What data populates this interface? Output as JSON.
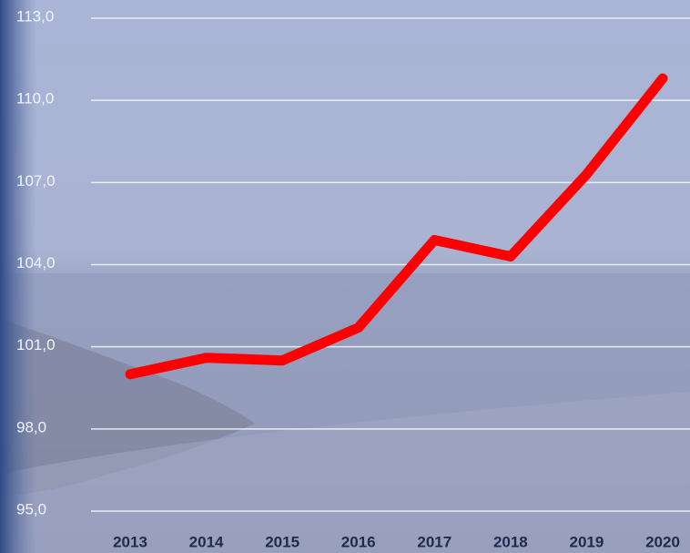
{
  "chart_data": {
    "type": "line",
    "categories": [
      "2013",
      "2014",
      "2015",
      "2016",
      "2017",
      "2018",
      "2019",
      "2020"
    ],
    "values": [
      100.0,
      100.6,
      100.5,
      101.7,
      104.9,
      104.3,
      107.3,
      110.8
    ],
    "color": "#ff0000",
    "ylim": [
      95,
      113
    ],
    "yticks": [
      {
        "value": 95,
        "label": "95,0"
      },
      {
        "value": 98,
        "label": "98,0"
      },
      {
        "value": 101,
        "label": "101,0"
      },
      {
        "value": 104,
        "label": "104,0"
      },
      {
        "value": 107,
        "label": "107,0"
      },
      {
        "value": 110,
        "label": "110,0"
      },
      {
        "value": 113,
        "label": "113,0"
      }
    ],
    "grid": true
  }
}
